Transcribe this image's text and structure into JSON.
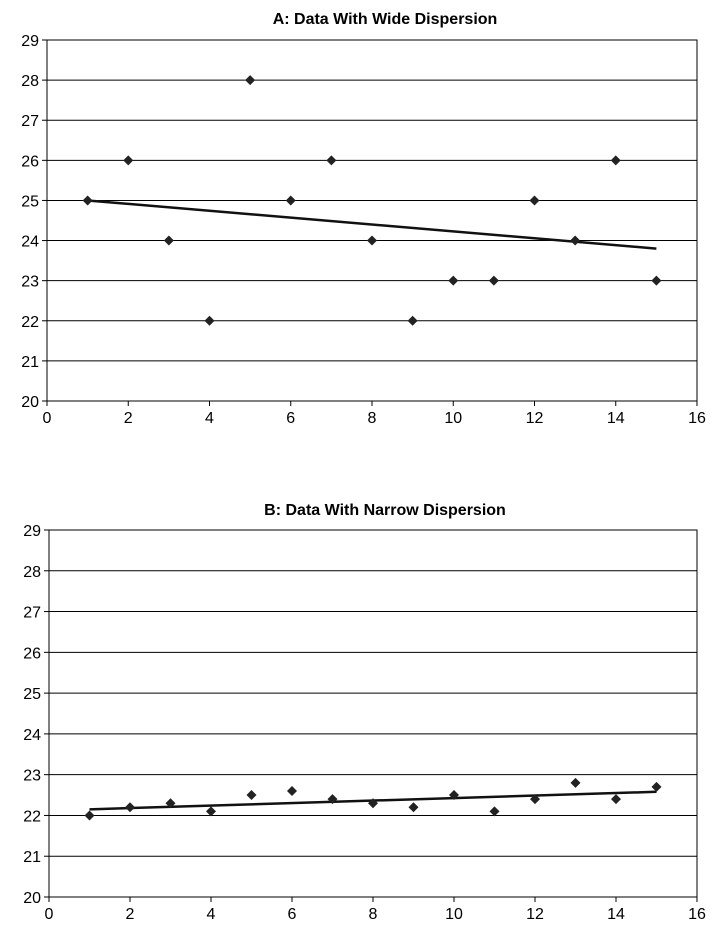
{
  "chart_data": [
    {
      "type": "scatter",
      "title": "A: Data With Wide Dispersion",
      "xlabel": "",
      "ylabel": "",
      "xlim": [
        0,
        16
      ],
      "ylim": [
        20,
        29
      ],
      "xticks": [
        0,
        2,
        4,
        6,
        8,
        10,
        12,
        14,
        16
      ],
      "yticks": [
        20,
        21,
        22,
        23,
        24,
        25,
        26,
        27,
        28,
        29
      ],
      "grid": "horizontal",
      "x": [
        1,
        2,
        3,
        4,
        5,
        6,
        7,
        8,
        9,
        10,
        11,
        12,
        13,
        14,
        15
      ],
      "y": [
        25,
        26,
        24,
        22,
        28,
        25,
        26,
        24,
        22,
        23,
        23,
        25,
        24,
        26,
        23
      ],
      "trendline": {
        "x": [
          1,
          15
        ],
        "y": [
          25.0,
          23.8
        ]
      },
      "marker_color": "#222222"
    },
    {
      "type": "scatter",
      "title": "B: Data With Narrow Dispersion",
      "xlabel": "",
      "ylabel": "",
      "xlim": [
        0,
        16
      ],
      "ylim": [
        20,
        29
      ],
      "xticks": [
        0,
        2,
        4,
        6,
        8,
        10,
        12,
        14,
        16
      ],
      "yticks": [
        20,
        21,
        22,
        23,
        24,
        25,
        26,
        27,
        28,
        29
      ],
      "grid": "horizontal",
      "x": [
        1,
        2,
        3,
        4,
        5,
        6,
        7,
        8,
        9,
        10,
        11,
        12,
        13,
        14,
        15
      ],
      "y": [
        22.0,
        22.2,
        22.3,
        22.1,
        22.5,
        22.6,
        22.4,
        22.3,
        22.2,
        22.5,
        22.1,
        22.4,
        22.8,
        22.4,
        22.7
      ],
      "trendline": {
        "x": [
          1,
          15
        ],
        "y": [
          22.15,
          22.58
        ]
      },
      "marker_color": "#222222"
    }
  ]
}
